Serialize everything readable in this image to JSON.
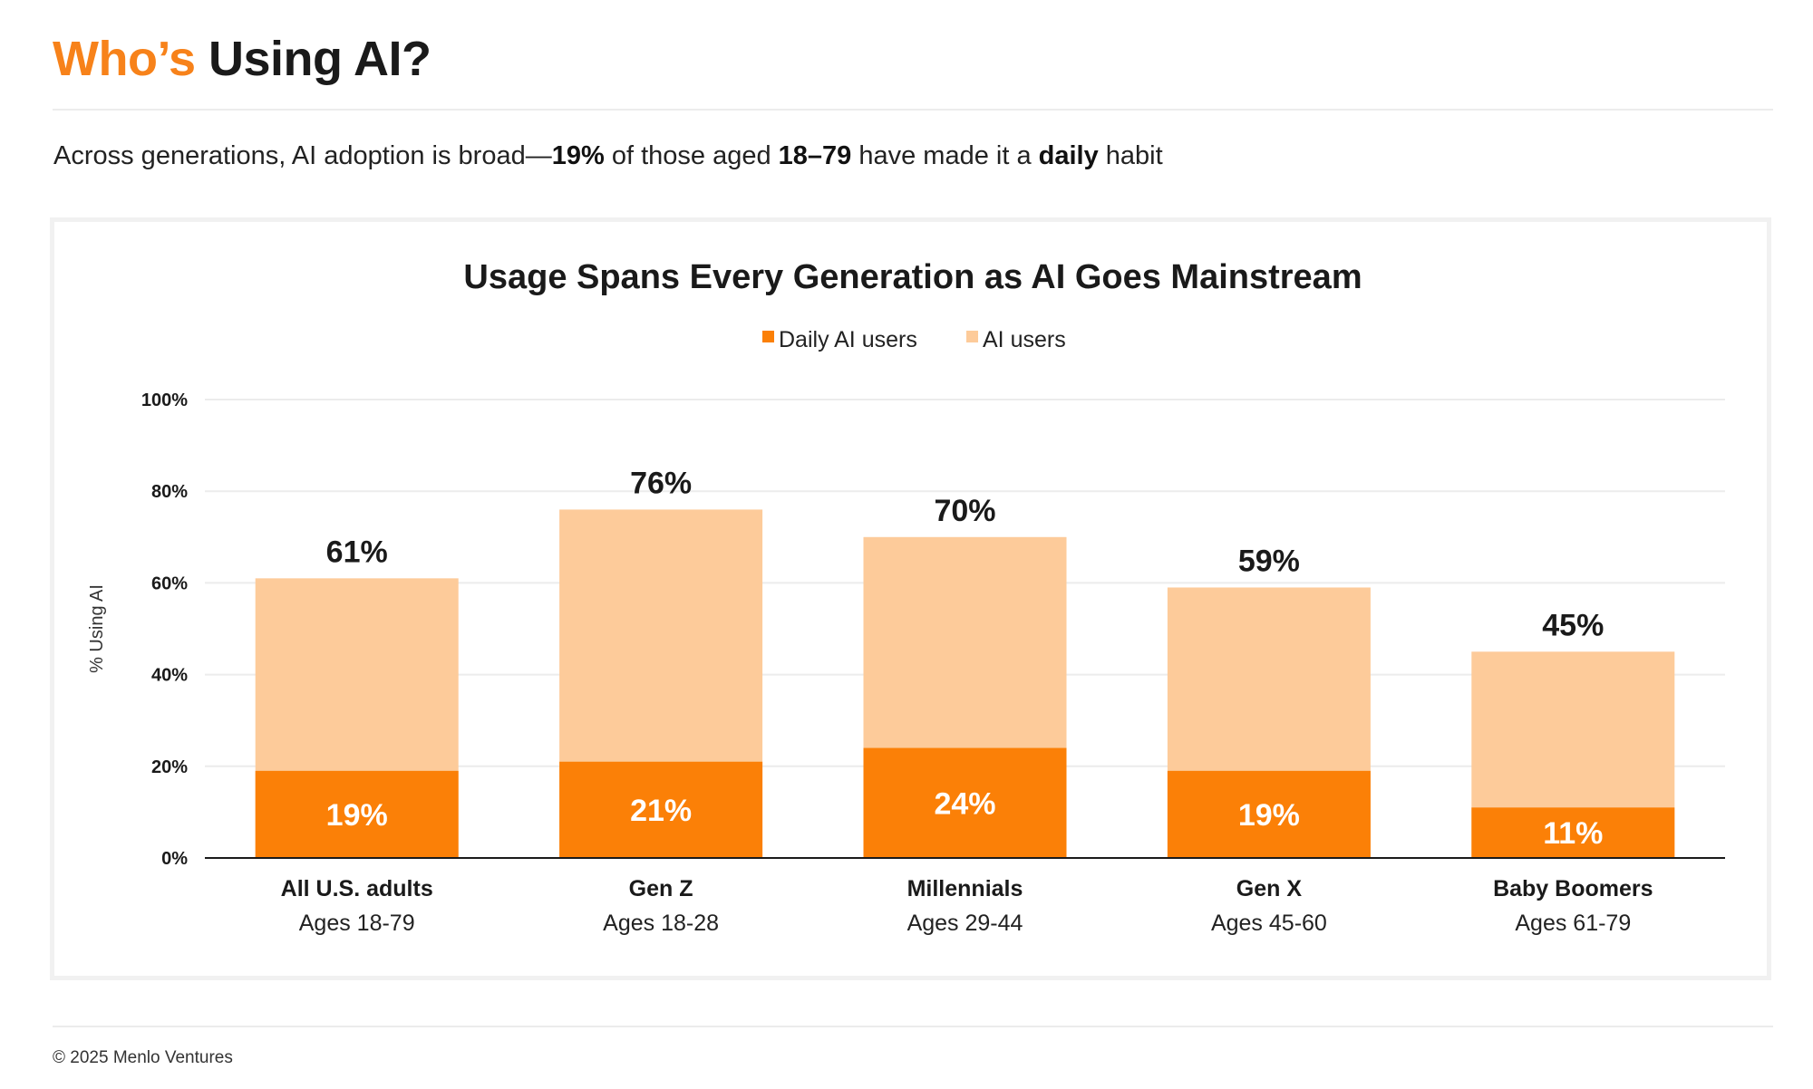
{
  "header": {
    "title_accent": "Who’s",
    "title_rest": "Using AI?",
    "subtitle": {
      "t1": "Across generations, AI adoption is broad—",
      "b1": "19%",
      "t2": " of those aged ",
      "b2": "18–79",
      "t3": " have made it a ",
      "b3": "daily",
      "t4": " habit"
    }
  },
  "footer": {
    "copyright": "© 2025 Menlo Ventures"
  },
  "colors": {
    "accent": "#f7821a",
    "daily": "#fb8007",
    "users": "#fdcb9a",
    "text": "#1a1a1a",
    "grid": "#ececec"
  },
  "chart_data": {
    "type": "bar",
    "stacked": true,
    "title": "Usage Spans Every Generation as AI Goes Mainstream",
    "xlabel": "",
    "ylabel": "% Using AI",
    "ylim": [
      0,
      100
    ],
    "yticks": [
      0,
      20,
      40,
      60,
      80,
      100
    ],
    "ytick_labels": [
      "0%",
      "20%",
      "40%",
      "60%",
      "80%",
      "100%"
    ],
    "legend_position": "top-center",
    "grid": true,
    "categories": [
      "All U.S. adults",
      "Gen Z",
      "Millennials",
      "Gen X",
      "Baby Boomers"
    ],
    "subcategories": [
      "Ages 18-79",
      "Ages 18-28",
      "Ages 29-44",
      "Ages 45-60",
      "Ages 61-79"
    ],
    "series": [
      {
        "name": "Daily AI users",
        "values": [
          19,
          21,
          24,
          19,
          11
        ],
        "labels": [
          "19%",
          "21%",
          "24%",
          "19%",
          "11%"
        ]
      },
      {
        "name": "AI users",
        "values": [
          61,
          76,
          70,
          59,
          45
        ],
        "labels": [
          "61%",
          "76%",
          "70%",
          "59%",
          "45%"
        ]
      }
    ]
  }
}
